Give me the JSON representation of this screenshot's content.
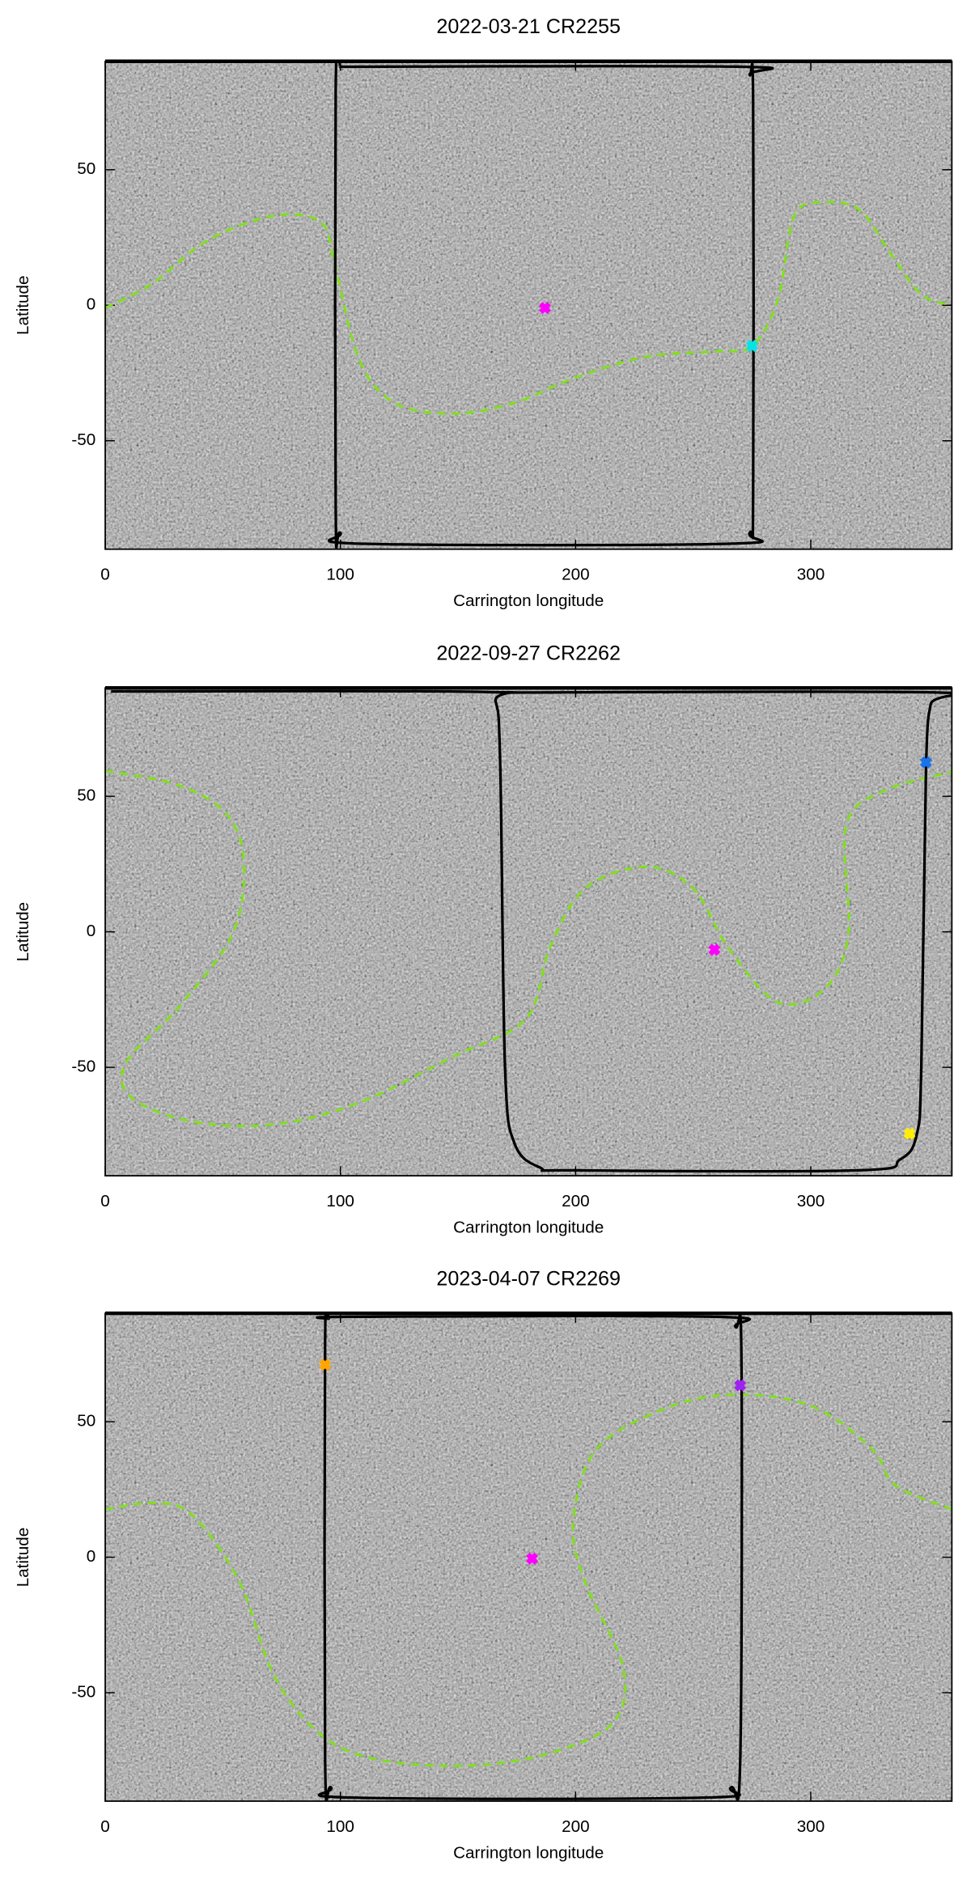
{
  "chart_data": [
    {
      "type": "line",
      "title": "2022-03-21 CR2255",
      "x_label": "Carrington longitude",
      "y_label": "Latitude",
      "xlim": [
        0,
        360
      ],
      "ylim": [
        -90,
        90
      ],
      "xticks": [
        0,
        100,
        200,
        300
      ],
      "yticks": [
        -50,
        0,
        50
      ],
      "series": [
        {
          "color": "#7fe01c",
          "style": "dashed",
          "x": [
            0,
            20,
            40,
            59,
            77,
            92.5,
            97.6,
            108,
            123,
            148,
            174,
            199,
            230,
            260,
            275,
            286,
            293,
            306,
            321,
            334,
            347,
            360
          ],
          "values": [
            -1,
            8,
            22,
            30,
            33.5,
            30,
            15,
            -20,
            -36,
            -40,
            -36,
            -27,
            -19,
            -17,
            -15,
            2,
            33,
            38,
            35,
            19,
            4,
            0
          ]
        },
        {
          "color": "#000000",
          "style": "solid",
          "x": [
            100,
            98,
            98,
            100,
            110,
            265,
            274,
            275.5,
            275.5,
            274,
            270,
            100
          ],
          "values": [
            88,
            80,
            -75,
            -84,
            -88,
            -88,
            -84,
            -70,
            75,
            85,
            88,
            88
          ]
        }
      ],
      "points": [
        {
          "x": 187,
          "y": -1,
          "color": "#ff00ff"
        },
        {
          "x": 275,
          "y": -15,
          "color": "#00e5e5"
        }
      ]
    },
    {
      "type": "line",
      "title": "2022-09-27 CR2262",
      "x_label": "Carrington longitude",
      "y_label": "Latitude",
      "xlim": [
        0,
        360
      ],
      "ylim": [
        -90,
        90
      ],
      "xticks": [
        0,
        100,
        200,
        300
      ],
      "yticks": [
        -50,
        0,
        50
      ],
      "series": [
        {
          "color": "#7fe01c",
          "style": "dashed",
          "x": [
            0,
            31.5,
            52,
            59,
            54,
            31,
            9,
            11,
            37,
            72,
            108,
            148,
            179,
            189,
            204,
            230,
            250,
            265,
            286,
            306,
            316,
            315,
            331,
            360
          ],
          "values": [
            59.4,
            54,
            43,
            25,
            -1,
            -28,
            -48,
            -61,
            -70,
            -71,
            -63,
            -46,
            -32,
            -6,
            16,
            24,
            16,
            -6,
            -26,
            -21,
            -1,
            39,
            52,
            59
          ]
        },
        {
          "color": "#000000",
          "style": "solid",
          "x": [
            2.5,
            160,
            166,
            168,
            170,
            174,
            185,
            200,
            320,
            338,
            345,
            347,
            349,
            351,
            354,
            170
          ],
          "values": [
            88.7,
            88.5,
            85,
            60,
            -50,
            -78,
            -87,
            -88,
            -88,
            -84,
            -75,
            -50,
            60,
            84,
            88.3,
            88.3
          ]
        }
      ],
      "points": [
        {
          "x": 349,
          "y": 62.5,
          "color": "#1a73e8"
        },
        {
          "x": 259,
          "y": -6.6,
          "color": "#ff00ff"
        },
        {
          "x": 342,
          "y": -74.5,
          "color": "#ffee00"
        }
      ]
    },
    {
      "type": "line",
      "title": "2023-04-07 CR2269",
      "x_label": "Carrington longitude",
      "y_label": "Latitude",
      "xlim": [
        0,
        360
      ],
      "ylim": [
        -90,
        90
      ],
      "xticks": [
        0,
        100,
        200,
        300
      ],
      "yticks": [
        -50,
        0,
        50
      ],
      "series": [
        {
          "color": "#7fe01c",
          "style": "dashed",
          "x": [
            0,
            21,
            37,
            57,
            72,
            92.5,
            118,
            159,
            194,
            217,
            220,
            204,
            199,
            209,
            240,
            270,
            301,
            326,
            336,
            360
          ],
          "values": [
            17.7,
            20,
            15.5,
            -9,
            -44,
            -66,
            -75,
            -76.7,
            -71,
            -60,
            -40,
            -9,
            13,
            40,
            55.5,
            60,
            55.5,
            40,
            26.5,
            17.7
          ]
        },
        {
          "color": "#000000",
          "style": "solid",
          "x": [
            95,
            93.5,
            93.5,
            96,
            105,
            255,
            266,
            270,
            270.5,
            268,
            260,
            105,
            95
          ],
          "values": [
            88,
            80,
            -75,
            -85,
            -88.7,
            -88.7,
            -85,
            -75,
            75,
            85,
            88.7,
            88.7,
            88
          ]
        }
      ],
      "points": [
        {
          "x": 93.5,
          "y": 71,
          "color": "#ffa500"
        },
        {
          "x": 270,
          "y": 63.4,
          "color": "#a020f0"
        },
        {
          "x": 181.5,
          "y": -0.5,
          "color": "#ff00ff"
        }
      ]
    }
  ]
}
